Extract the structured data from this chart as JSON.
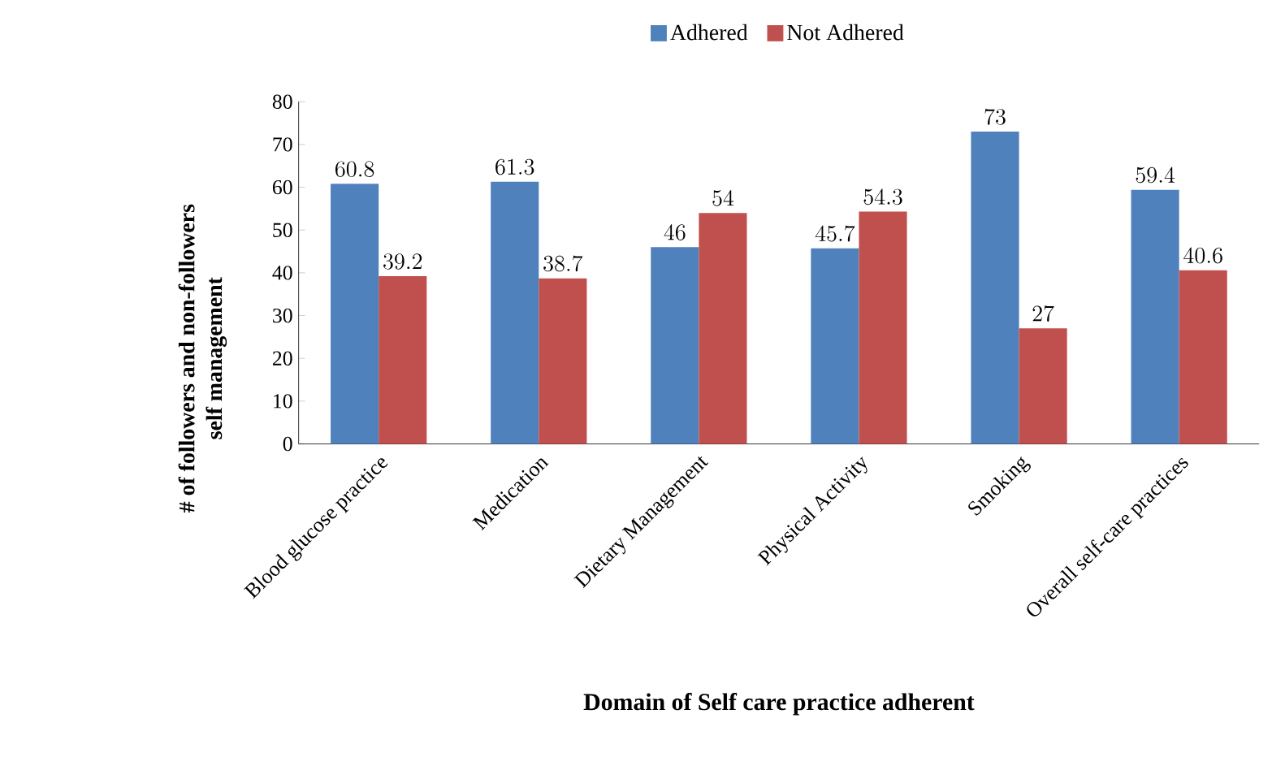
{
  "chart_data": {
    "type": "bar",
    "xlabel": "Domain of Self care practice adherent",
    "ylabel": "# of followers and non-followers\nself management",
    "categories": [
      "Blood glucose practice",
      "Medication",
      "Dietary Management",
      "Physical Activity",
      "Smoking",
      "Overall self-care practices"
    ],
    "series": [
      {
        "name": "Adhered",
        "color": "#4f81bd",
        "values": [
          60.8,
          61.3,
          46,
          45.7,
          73,
          59.4
        ]
      },
      {
        "name": "Not Adhered",
        "color": "#c0504d",
        "values": [
          39.2,
          38.7,
          54,
          54.3,
          27,
          40.6
        ]
      }
    ],
    "ylim": [
      0,
      80
    ],
    "yticks": [
      0,
      10,
      20,
      30,
      40,
      50,
      60,
      70,
      80
    ],
    "data_labels": true,
    "legend": "top"
  }
}
